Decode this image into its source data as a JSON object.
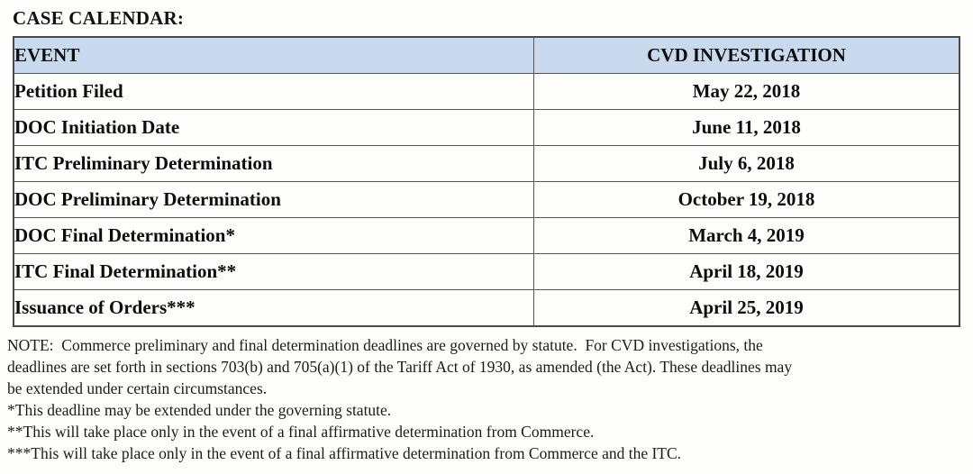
{
  "page": {
    "title": "CASE CALENDAR:"
  },
  "table": {
    "headers": {
      "event": "EVENT",
      "cvd": "CVD INVESTIGATION"
    },
    "rows": [
      {
        "event": "Petition Filed",
        "date": "May 22, 2018"
      },
      {
        "event": "DOC Initiation Date",
        "date": "June 11, 2018"
      },
      {
        "event": "ITC Preliminary Determination",
        "date": "July 6, 2018"
      },
      {
        "event": "DOC Preliminary Determination",
        "date": "October 19, 2018"
      },
      {
        "event": "DOC Final Determination*",
        "date": "March 4, 2019"
      },
      {
        "event": "ITC Final Determination**",
        "date": "April 18, 2019"
      },
      {
        "event": "Issuance of Orders***",
        "date": "April 25, 2019"
      }
    ]
  },
  "notes": {
    "note_lines": [
      "NOTE:  Commerce preliminary and final determination deadlines are governed by statute.  For CVD investigations, the",
      "deadlines are set forth in sections 703(b) and 705(a)(1) of the Tariff Act of 1930, as amended (the Act). These deadlines may",
      "be extended under certain circumstances."
    ],
    "footnotes": [
      "*This deadline may be extended under the governing statute.",
      "**This will take place only in the event of a final affirmative determination from Commerce.",
      "***This will take place only in the event of a final affirmative determination from Commerce and the ITC."
    ]
  },
  "colors": {
    "header_bg": "#c9d9ee",
    "border": "#555555",
    "text": "#0d0d0d"
  }
}
